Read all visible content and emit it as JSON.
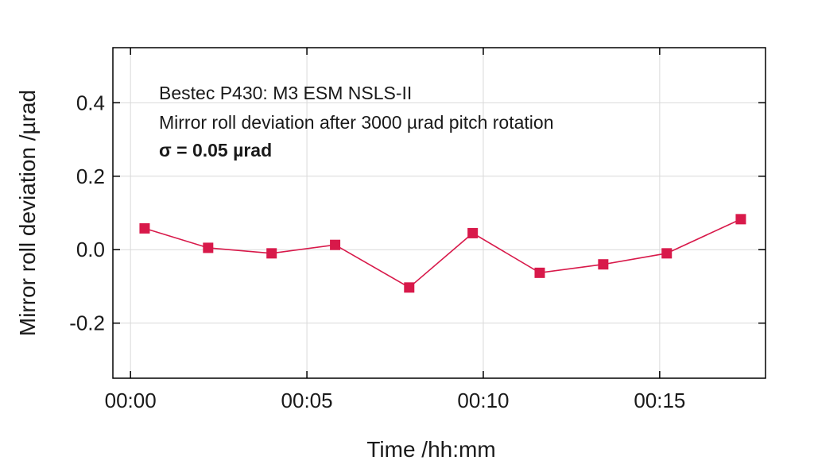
{
  "colors": {
    "series": "#d8194a",
    "grid": "#d9d9d9",
    "axis": "#000000"
  },
  "chart_data": {
    "type": "line",
    "xlabel": "Time /hh:mm",
    "ylabel": "Mirror roll deviation /µrad",
    "annotations": [
      "Bestec P430: M3 ESM NSLS-II",
      "Mirror roll deviation after 3000 µrad pitch rotation",
      "σ = 0.05 µrad"
    ],
    "xlim": [
      -0.5,
      18.0
    ],
    "ylim": [
      -0.35,
      0.55
    ],
    "xticks": [
      {
        "value": 0,
        "label": "00:00"
      },
      {
        "value": 5,
        "label": "00:05"
      },
      {
        "value": 10,
        "label": "00:10"
      },
      {
        "value": 15,
        "label": "00:15"
      }
    ],
    "yticks": [
      {
        "value": 0.4,
        "label": "0.4"
      },
      {
        "value": 0.2,
        "label": "0.2"
      },
      {
        "value": 0.0,
        "label": "0.0"
      },
      {
        "value": -0.2,
        "label": "-0.2"
      }
    ],
    "grid": true,
    "marker": "square",
    "series": [
      {
        "x": [
          0.4,
          2.2,
          4.0,
          5.8,
          7.9,
          9.7,
          11.6,
          13.4,
          15.2,
          17.3
        ],
        "y": [
          0.058,
          0.005,
          -0.01,
          0.013,
          -0.103,
          0.045,
          -0.063,
          -0.04,
          -0.01,
          0.083
        ]
      }
    ]
  }
}
